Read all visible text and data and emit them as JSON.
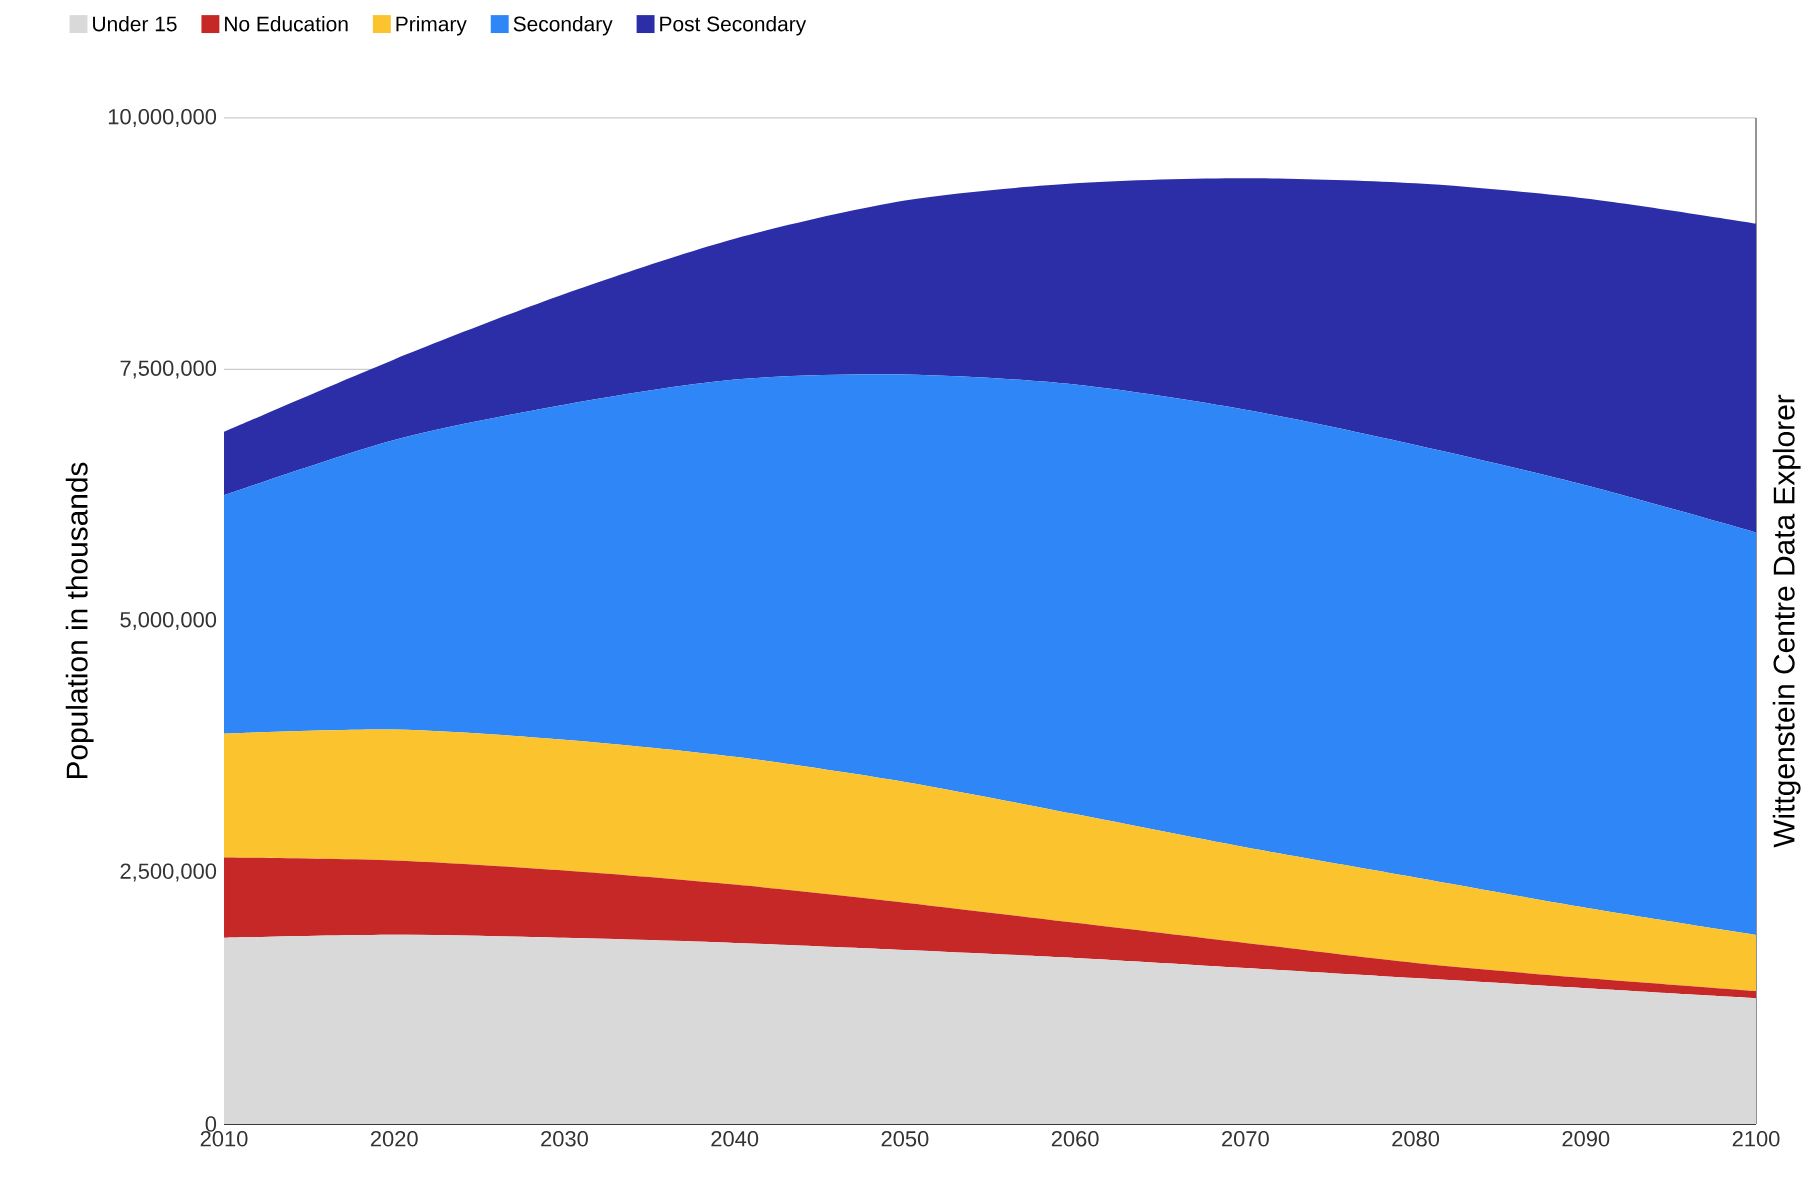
{
  "chart_data": {
    "type": "area",
    "stacked": true,
    "ylabel": "Population in thousands",
    "x": [
      2010,
      2020,
      2030,
      2040,
      2050,
      2060,
      2070,
      2080,
      2090,
      2100
    ],
    "series": [
      {
        "name": "Under 15",
        "color": "#d9d9d9",
        "values": [
          1850000,
          1880000,
          1850000,
          1800000,
          1730000,
          1650000,
          1550000,
          1450000,
          1350000,
          1250000
        ]
      },
      {
        "name": "No Education",
        "color": "#c62828",
        "values": [
          800000,
          740000,
          670000,
          580000,
          470000,
          350000,
          250000,
          150000,
          100000,
          70000
        ]
      },
      {
        "name": "Primary",
        "color": "#fbc32d",
        "values": [
          1230000,
          1300000,
          1300000,
          1270000,
          1200000,
          1080000,
          950000,
          850000,
          700000,
          560000
        ]
      },
      {
        "name": "Secondary",
        "color": "#2f86f6",
        "values": [
          2370000,
          2880000,
          3330000,
          3750000,
          4050000,
          4270000,
          4350000,
          4300000,
          4200000,
          4000000
        ]
      },
      {
        "name": "Post Secondary",
        "color": "#2c2ea8",
        "values": [
          630000,
          800000,
          1100000,
          1400000,
          1730000,
          2000000,
          2300000,
          2600000,
          2850000,
          3070000
        ]
      }
    ],
    "xlim": [
      2010,
      2100
    ],
    "xticks": [
      2010,
      2020,
      2030,
      2040,
      2050,
      2060,
      2070,
      2080,
      2090,
      2100
    ],
    "ylim": [
      0,
      10000000
    ],
    "yticks": [
      {
        "value": 0,
        "label": "0"
      },
      {
        "value": 2500000,
        "label": "2,500,000"
      },
      {
        "value": 5000000,
        "label": "5,000,000"
      },
      {
        "value": 7500000,
        "label": "7,500,000"
      },
      {
        "value": 10000000,
        "label": "10,000,000"
      }
    ],
    "grid": "y",
    "legend": "top left",
    "annotations": [
      "Wittgenstein Centre Data Explorer"
    ]
  }
}
